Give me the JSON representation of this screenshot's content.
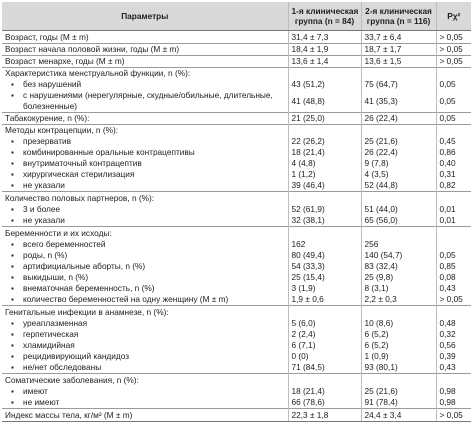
{
  "header": {
    "params": "Параметры",
    "g1": [
      "1-я клиническая",
      "группа (n = 84)"
    ],
    "g2": [
      "2-я клиническая",
      "группа (n = 116)"
    ],
    "p": "Рχ²"
  },
  "rows": [
    {
      "label": "Возраст, годы (M ± m)",
      "g1": "31,4 ± 7,3",
      "g2": "33,7 ± 6,4",
      "p": "> 0,05"
    },
    {
      "label": "Возраст начала половой жизни, годы (M ± m)",
      "g1": "18,4 ± 1,9",
      "g2": "18,7 ± 1,7",
      "p": "> 0,05",
      "sep": true
    },
    {
      "label": "Возраст менархе, годы (M ± m)",
      "g1": "13,6 ± 1,4",
      "g2": "13,6 ± 1,5",
      "p": "> 0,05",
      "sep": true
    },
    {
      "label": "Характеристика менструальной функции, n (%):",
      "sep": true
    },
    {
      "label": "без нарушений",
      "bullet": true,
      "g1": "43 (51,2)",
      "g2": "75 (64,7)",
      "p": "0,05"
    },
    {
      "label": "с нарушениями (нерегулярные, скудные/обильные, длительные, болезненные)",
      "bullet": true,
      "wrap": true,
      "g1": "41 (48,8)",
      "g2": "41 (35,3)",
      "p": "0,05"
    },
    {
      "label": "Табакокурение, n (%):",
      "g1": "21 (25,0)",
      "g2": "26 (22,4)",
      "p": "0,05",
      "sep": true
    },
    {
      "label": "Методы контрацепции, n (%):",
      "sep": true
    },
    {
      "label": "презерватив",
      "bullet": true,
      "g1": "22 (26,2)",
      "g2": "25 (21,6)",
      "p": "0,45"
    },
    {
      "label": "комбинированные оральные контрацептивы",
      "bullet": true,
      "g1": "18 (21,4)",
      "g2": "26 (22,4)",
      "p": "0,86"
    },
    {
      "label": "внутриматочный контрацептив",
      "bullet": true,
      "g1": "4 (4,8)",
      "g2": "9 (7,8)",
      "p": "0,40"
    },
    {
      "label": "хирургическая стерилизация",
      "bullet": true,
      "g1": "1 (1,2)",
      "g2": "4 (3,5)",
      "p": "0,31"
    },
    {
      "label": "не указали",
      "bullet": true,
      "g1": "39 (46,4)",
      "g2": "52 (44,8)",
      "p": "0,82"
    },
    {
      "label": "Количество половых партнеров, n (%):",
      "sep": true
    },
    {
      "label": "3 и более",
      "bullet": true,
      "g1": "52 (61,9)",
      "g2": "51 (44,0)",
      "p": "0,01"
    },
    {
      "label": "не указали",
      "bullet": true,
      "g1": "32 (38,1)",
      "g2": "65 (56,0)",
      "p": "0,01"
    },
    {
      "label": "Беременности и их исходы:",
      "sep": true
    },
    {
      "label": "всего беременностей",
      "bullet": true,
      "g1": "162",
      "g2": "256",
      "p": ""
    },
    {
      "label": "роды, n (%)",
      "bullet": true,
      "g1": "80 (49,4)",
      "g2": "140 (54,7)",
      "p": "0,05"
    },
    {
      "label": "артифициальные аборты, n (%)",
      "bullet": true,
      "g1": "54 (33,3)",
      "g2": "83 (32,4)",
      "p": "0,85"
    },
    {
      "label": "выкидыши, n (%)",
      "bullet": true,
      "g1": "25 (15,4)",
      "g2": "25 (9,8)",
      "p": "0,08"
    },
    {
      "label": "внематочная беременность, n (%)",
      "bullet": true,
      "g1": "3 (1,9)",
      "g2": "8 (3,1)",
      "p": "0,43"
    },
    {
      "label": "количество беременностей на одну женщину (M ± m)",
      "bullet": true,
      "g1": "1,9 ± 0,6",
      "g2": "2,2 ± 0,3",
      "p": "> 0,05"
    },
    {
      "label": "Генитальные инфекции в анамнезе, n (%):",
      "sep": true
    },
    {
      "label": "уреаплазменная",
      "bullet": true,
      "g1": "5 (6,0)",
      "g2": "10 (8,6)",
      "p": "0,48"
    },
    {
      "label": "герпетическая",
      "bullet": true,
      "g1": "2 (2,4)",
      "g2": "6 (5,2)",
      "p": "0,32"
    },
    {
      "label": "хламидийная",
      "bullet": true,
      "g1": "6 (7,1)",
      "g2": "6 (5,2)",
      "p": "0,56"
    },
    {
      "label": "рецидивирующий кандидоз",
      "bullet": true,
      "g1": "0 (0)",
      "g2": "1 (0,9)",
      "p": "0,39"
    },
    {
      "label": "не/нет обследованы",
      "bullet": true,
      "g1": "71 (84,5)",
      "g2": "93 (80,1)",
      "p": "0,43"
    },
    {
      "label": "Соматические заболевания, n (%):",
      "sep": true
    },
    {
      "label": "имеют",
      "bullet": true,
      "g1": "18 (21,4)",
      "g2": "25 (21,6)",
      "p": "0,98"
    },
    {
      "label": "не имеют",
      "bullet": true,
      "g1": "66 (78,6)",
      "g2": "91 (78,4)",
      "p": "0,98"
    },
    {
      "label": "Индекс массы тела, кг/м² (M ± m)",
      "g1": "22,3 ± 1,8",
      "g2": "24,4 ± 3,4",
      "p": "> 0,05",
      "sep": true,
      "last": true
    }
  ]
}
